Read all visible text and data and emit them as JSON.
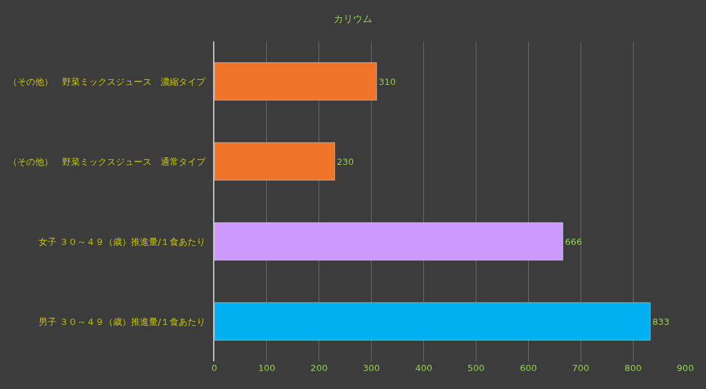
{
  "chart_data": {
    "type": "bar",
    "orientation": "horizontal",
    "title": "カリウム",
    "categories": [
      "（その他）　野菜ミックスジュース　濃縮タイプ",
      "（その他）　野菜ミックスジュース　通常タイプ",
      "女子 ３０～４９（歳）推進量/１食あたり",
      "男子 ３０～４９（歳）推進量/１食あたり"
    ],
    "values": [
      310,
      230,
      666,
      833
    ],
    "colors": [
      "#ed7428",
      "#ed7428",
      "#cc99ff",
      "#00b0f0"
    ],
    "xlim": [
      0,
      900
    ],
    "xticks": [
      0,
      100,
      200,
      300,
      400,
      500,
      600,
      700,
      800,
      900
    ],
    "grid": "x",
    "data_labels": true
  }
}
